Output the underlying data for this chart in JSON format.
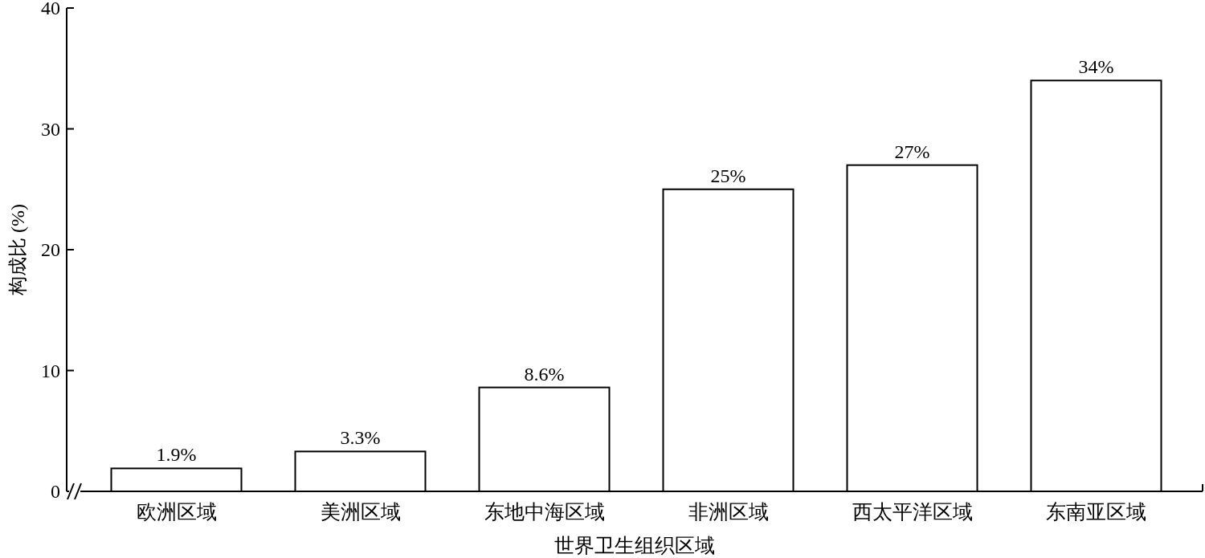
{
  "chart_data": {
    "type": "bar",
    "xlabel": "世界卫生组织区域",
    "ylabel": "构成比 (%)",
    "categories": [
      "欧洲区域",
      "美洲区域",
      "东地中海区域",
      "非洲区域",
      "西太平洋区域",
      "东南亚区域"
    ],
    "values": [
      1.9,
      3.3,
      8.6,
      25,
      27,
      34
    ],
    "value_labels": [
      "1.9%",
      "3.3%",
      "8.6%",
      "25%",
      "27%",
      "34%"
    ],
    "color": "#ffffff",
    "ylim": [
      0,
      40
    ],
    "yticks": [
      0,
      10,
      20,
      30,
      40
    ],
    "grid": false
  }
}
